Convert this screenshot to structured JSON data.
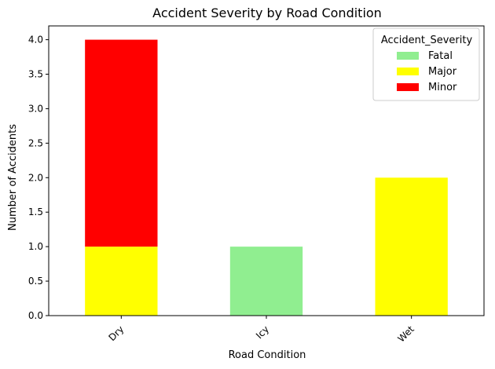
{
  "chart_data": {
    "type": "bar",
    "stacked": true,
    "title": "Accident Severity by Road Condition",
    "xlabel": "Road Condition",
    "ylabel": "Number of Accidents",
    "categories": [
      "Dry",
      "Icy",
      "Wet"
    ],
    "series": [
      {
        "name": "Fatal",
        "values": [
          0,
          1,
          0
        ],
        "color": "#90EE90"
      },
      {
        "name": "Major",
        "values": [
          1,
          0,
          2
        ],
        "color": "#FFFF00"
      },
      {
        "name": "Minor",
        "values": [
          3,
          0,
          0
        ],
        "color": "#FF0000"
      }
    ],
    "ylim": [
      0,
      4.2
    ],
    "yticks": [
      "0.0",
      "0.5",
      "1.0",
      "1.5",
      "2.0",
      "2.5",
      "3.0",
      "3.5",
      "4.0"
    ],
    "grid": false,
    "legend": {
      "title": "Accident_Severity",
      "position": "top-right"
    },
    "xtick_rotation": "45 degrees"
  }
}
